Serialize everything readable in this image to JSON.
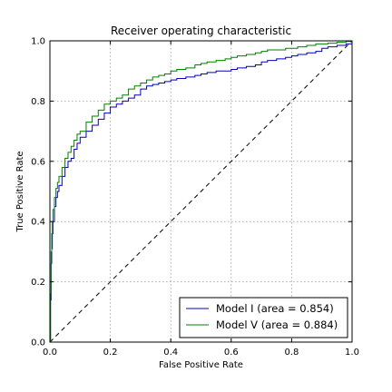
{
  "chart_data": {
    "type": "line",
    "title": "Receiver operating characteristic",
    "xlabel": "False Positive Rate",
    "ylabel": "True Positive Rate",
    "xlim": [
      0.0,
      1.0
    ],
    "ylim": [
      0.0,
      1.0
    ],
    "xticks": [
      0.0,
      0.2,
      0.4,
      0.6,
      0.8,
      1.0
    ],
    "yticks": [
      0.0,
      0.2,
      0.4,
      0.6,
      0.8,
      1.0
    ],
    "xtick_labels": [
      "0.0",
      "0.2",
      "0.4",
      "0.6",
      "0.8",
      "1.0"
    ],
    "ytick_labels": [
      "0.0",
      "0.2",
      "0.4",
      "0.6",
      "0.8",
      "1.0"
    ],
    "grid": true,
    "legend_position": "lower-right",
    "series": [
      {
        "name": "Model I (area = 0.854)",
        "color": "#0000bf",
        "style": "solid",
        "x": [
          0.0,
          0.002,
          0.004,
          0.006,
          0.008,
          0.01,
          0.015,
          0.02,
          0.025,
          0.03,
          0.04,
          0.05,
          0.06,
          0.07,
          0.08,
          0.09,
          0.1,
          0.12,
          0.14,
          0.16,
          0.18,
          0.2,
          0.22,
          0.24,
          0.26,
          0.28,
          0.3,
          0.32,
          0.34,
          0.36,
          0.38,
          0.4,
          0.42,
          0.45,
          0.48,
          0.5,
          0.52,
          0.55,
          0.58,
          0.6,
          0.62,
          0.65,
          0.68,
          0.7,
          0.72,
          0.75,
          0.78,
          0.8,
          0.82,
          0.85,
          0.88,
          0.9,
          0.92,
          0.95,
          0.98,
          1.0
        ],
        "y": [
          0.0,
          0.14,
          0.26,
          0.31,
          0.36,
          0.4,
          0.45,
          0.48,
          0.5,
          0.52,
          0.55,
          0.58,
          0.6,
          0.61,
          0.64,
          0.66,
          0.68,
          0.7,
          0.72,
          0.74,
          0.76,
          0.78,
          0.79,
          0.8,
          0.81,
          0.82,
          0.84,
          0.85,
          0.855,
          0.86,
          0.865,
          0.87,
          0.875,
          0.88,
          0.885,
          0.89,
          0.895,
          0.9,
          0.9,
          0.905,
          0.91,
          0.915,
          0.92,
          0.93,
          0.935,
          0.94,
          0.945,
          0.95,
          0.955,
          0.96,
          0.965,
          0.975,
          0.98,
          0.985,
          0.99,
          1.0
        ]
      },
      {
        "name": "Model V (area = 0.884)",
        "color": "#007f00",
        "style": "solid",
        "x": [
          0.0,
          0.002,
          0.004,
          0.006,
          0.008,
          0.01,
          0.015,
          0.02,
          0.025,
          0.03,
          0.04,
          0.05,
          0.06,
          0.07,
          0.08,
          0.09,
          0.1,
          0.12,
          0.14,
          0.16,
          0.18,
          0.2,
          0.22,
          0.24,
          0.26,
          0.28,
          0.3,
          0.32,
          0.34,
          0.36,
          0.38,
          0.4,
          0.42,
          0.45,
          0.48,
          0.5,
          0.52,
          0.55,
          0.58,
          0.6,
          0.62,
          0.65,
          0.68,
          0.7,
          0.72,
          0.75,
          0.78,
          0.8,
          0.82,
          0.85,
          0.88,
          0.9,
          0.92,
          0.95,
          0.98,
          1.0
        ],
        "y": [
          0.0,
          0.16,
          0.3,
          0.36,
          0.4,
          0.44,
          0.48,
          0.51,
          0.53,
          0.55,
          0.58,
          0.61,
          0.63,
          0.65,
          0.67,
          0.69,
          0.7,
          0.73,
          0.75,
          0.77,
          0.79,
          0.8,
          0.81,
          0.82,
          0.84,
          0.85,
          0.86,
          0.87,
          0.88,
          0.885,
          0.89,
          0.9,
          0.905,
          0.91,
          0.92,
          0.925,
          0.93,
          0.935,
          0.94,
          0.945,
          0.95,
          0.955,
          0.96,
          0.965,
          0.97,
          0.97,
          0.975,
          0.975,
          0.98,
          0.985,
          0.99,
          0.99,
          0.992,
          0.995,
          0.998,
          1.0
        ]
      },
      {
        "name": "",
        "color": "#000000",
        "style": "dashed",
        "x": [
          0.0,
          1.0
        ],
        "y": [
          0.0,
          1.0
        ]
      }
    ]
  }
}
